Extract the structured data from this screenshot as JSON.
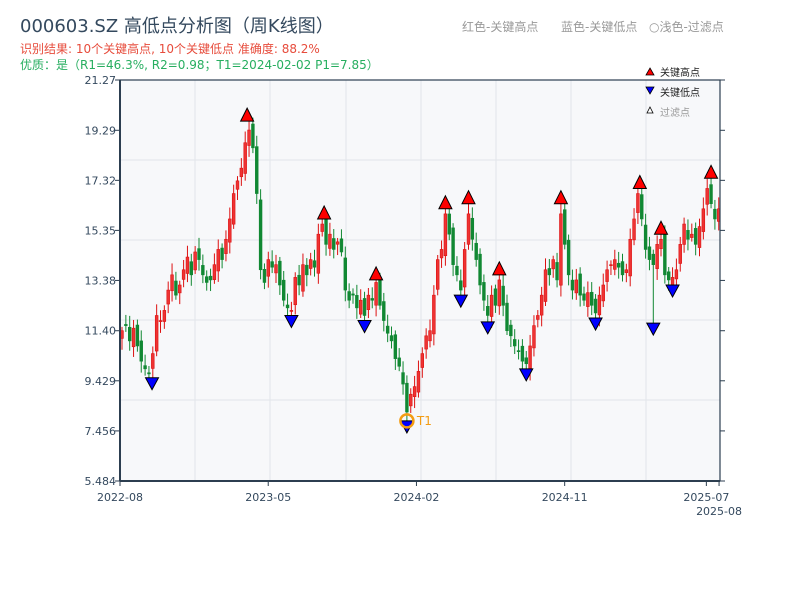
{
  "header": {
    "title": "000603.SZ 高低点分析图（周K线图）",
    "result_line": "识别结果: 10个关键高点, 10个关键低点   准确度: 88.2%",
    "quality_line": "优质：是（R1=46.3%, R2=0.98；T1=2024-02-02 P1=7.85）",
    "hint_high": "红色-关键高点",
    "hint_low": "蓝色-关键低点",
    "hint_filtered": "○浅色-过滤点"
  },
  "legend": {
    "high": "关键高点",
    "low": "关键低点",
    "filtered": "过滤点"
  },
  "colors": {
    "up": "#dd1111",
    "down": "#118833",
    "high_marker": "#ff0000",
    "low_marker": "#0000ff",
    "t1": "#f39c12",
    "axis": "#2c3e50",
    "plot_bg": "#f7f8fa"
  },
  "chart_data": {
    "type": "candlestick",
    "title": "000603.SZ 高低点分析图（周K线图）",
    "ylim": [
      5.484,
      21.27
    ],
    "yticks": [
      "5.484",
      "7.456",
      "9.429",
      "11.40",
      "13.38",
      "15.35",
      "17.32",
      "19.29",
      "21.27"
    ],
    "xticks": [
      {
        "label": "2022-08",
        "week": 0
      },
      {
        "label": "2023-05",
        "week": 38.5
      },
      {
        "label": "2024-02",
        "week": 77
      },
      {
        "label": "2024-11",
        "week": 115.5
      },
      {
        "label": "2025-07",
        "week": 152.3
      },
      {
        "label": "2025-08",
        "week": 155.6
      }
    ],
    "weekly_close": [
      11.4,
      11.6,
      11.0,
      11.5,
      10.8,
      10.2,
      9.9,
      9.7,
      10.5,
      12.0,
      11.8,
      12.2,
      13.0,
      13.6,
      12.8,
      13.2,
      13.8,
      14.3,
      13.6,
      14.5,
      14.2,
      13.6,
      13.3,
      13.4,
      14.0,
      14.6,
      14.2,
      15.0,
      15.8,
      16.8,
      17.3,
      17.8,
      18.8,
      19.3,
      18.6,
      16.8,
      13.8,
      13.3,
      14.2,
      13.9,
      14.0,
      13.2,
      12.6,
      12.3,
      12.2,
      13.5,
      13.2,
      14.0,
      13.6,
      14.2,
      13.9,
      15.2,
      15.6,
      14.8,
      15.2,
      14.6,
      14.9,
      14.5,
      13.0,
      12.6,
      12.8,
      12.3,
      12.6,
      12.0,
      12.8,
      12.6,
      13.3,
      12.4,
      11.8,
      11.3,
      11.0,
      10.3,
      10.0,
      9.3,
      8.2,
      8.9,
      9.2,
      9.8,
      10.5,
      11.2,
      11.4,
      12.8,
      14.2,
      14.6,
      16.0,
      15.2,
      14.0,
      13.6,
      13.0,
      14.6,
      16.0,
      15.0,
      14.2,
      13.2,
      12.6,
      12.0,
      12.8,
      12.4,
      13.4,
      12.4,
      11.4,
      11.2,
      10.8,
      10.6,
      10.2,
      10.1,
      10.8,
      11.6,
      12.0,
      12.8,
      13.8,
      13.6,
      14.2,
      13.4,
      16.0,
      14.8,
      13.6,
      13.0,
      13.4,
      12.8,
      12.6,
      12.9,
      12.4,
      12.1,
      12.8,
      13.2,
      13.8,
      14.0,
      14.2,
      13.9,
      13.6,
      13.8,
      15.0,
      15.8,
      16.8,
      15.8,
      14.6,
      14.2,
      14.0,
      14.8,
      15.0,
      13.6,
      13.4,
      13.5,
      13.8,
      14.8,
      15.6,
      15.0,
      15.2,
      14.8,
      15.5,
      16.2,
      17.0,
      16.4,
      15.8,
      16.2
    ],
    "key_highs": [
      {
        "week": 32.5,
        "price": 19.65
      },
      {
        "week": 52.5,
        "price": 15.8
      },
      {
        "week": 66,
        "price": 13.4
      },
      {
        "week": 84,
        "price": 16.2
      },
      {
        "week": 90,
        "price": 16.4
      },
      {
        "week": 98,
        "price": 13.6
      },
      {
        "week": 114,
        "price": 16.4
      },
      {
        "week": 134.5,
        "price": 17.0
      },
      {
        "week": 140,
        "price": 15.2
      },
      {
        "week": 153,
        "price": 17.4
      }
    ],
    "key_lows": [
      {
        "week": 7.8,
        "price": 9.55
      },
      {
        "week": 44,
        "price": 12.0
      },
      {
        "week": 63,
        "price": 11.8
      },
      {
        "week": 74,
        "price": 7.85
      },
      {
        "week": 88,
        "price": 12.8
      },
      {
        "week": 95,
        "price": 11.75
      },
      {
        "week": 105,
        "price": 9.9
      },
      {
        "week": 123,
        "price": 11.9
      },
      {
        "week": 138,
        "price": 11.7
      },
      {
        "week": 143,
        "price": 13.2
      }
    ],
    "t1": {
      "label": "T1",
      "date": "2024-02-02",
      "week": 74,
      "price": 7.85
    }
  }
}
